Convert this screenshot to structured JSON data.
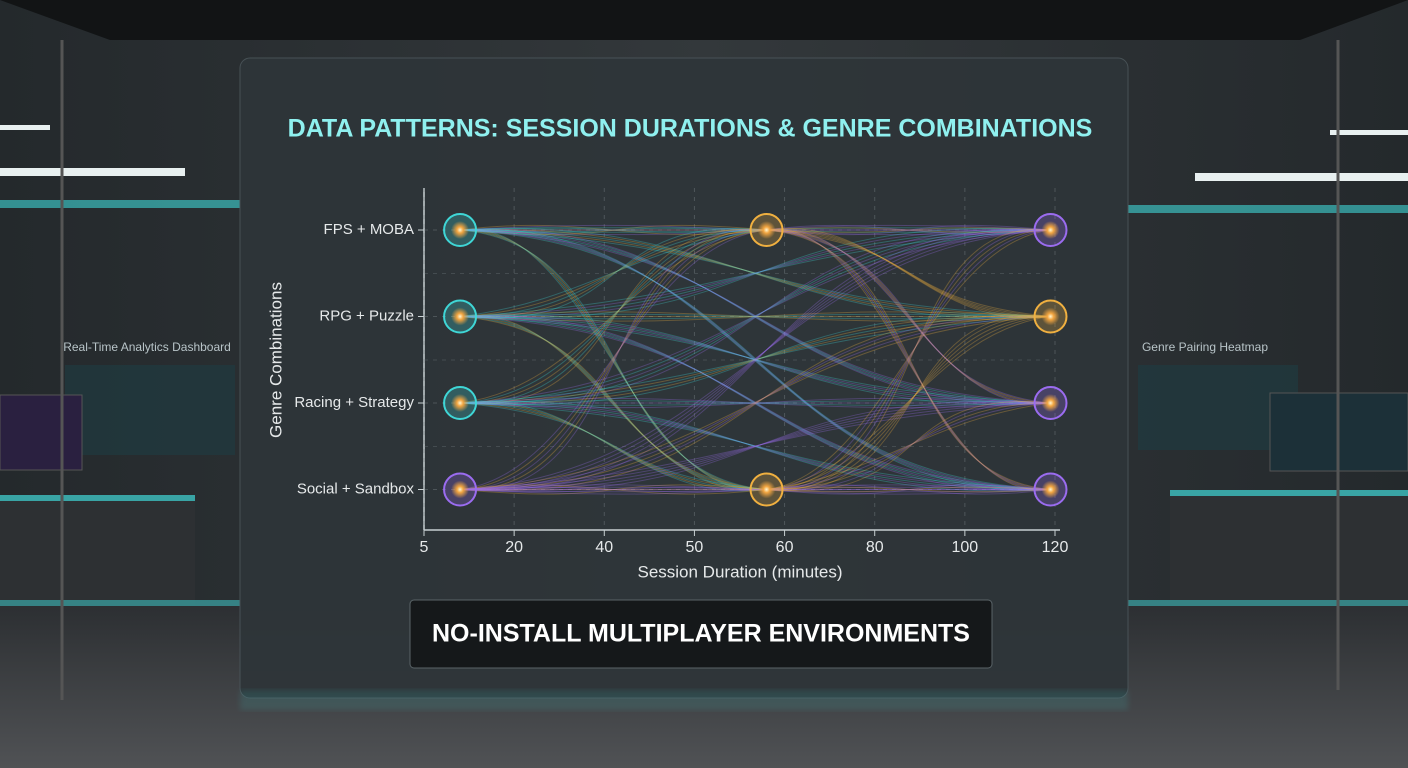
{
  "chart_data": {
    "type": "node-flow",
    "title": "DATA PATTERNS: SESSION DURATIONS & GENRE COMBINATIONS",
    "x_label": "Session Duration (minutes)",
    "y_label": "Genre Combinations",
    "categories": [
      "FPS + MOBA",
      "RPG + Puzzle",
      "Racing + Strategy",
      "Social + Sandbox"
    ],
    "xlim": [
      5,
      120
    ],
    "xticks": [
      5,
      20,
      40,
      50,
      60,
      80,
      100,
      120
    ],
    "grid": true,
    "points": [
      {
        "x": 11,
        "y": "FPS + MOBA",
        "color": "#3fd6d6"
      },
      {
        "x": 11,
        "y": "RPG + Puzzle",
        "color": "#3fd6d6"
      },
      {
        "x": 11,
        "y": "Racing + Strategy",
        "color": "#3fd6d6"
      },
      {
        "x": 11,
        "y": "Social + Sandbox",
        "color": "#9b6cf0"
      },
      {
        "x": 58,
        "y": "FPS + MOBA",
        "color": "#f0b040"
      },
      {
        "x": 58,
        "y": "Social + Sandbox",
        "color": "#f0b040"
      },
      {
        "x": 119,
        "y": "FPS + MOBA",
        "color": "#9b6cf0"
      },
      {
        "x": 119,
        "y": "RPG + Puzzle",
        "color": "#f0b040"
      },
      {
        "x": 119,
        "y": "Racing + Strategy",
        "color": "#9b6cf0"
      },
      {
        "x": 119,
        "y": "Social + Sandbox",
        "color": "#9b6cf0"
      }
    ]
  },
  "scene": {
    "banner": "NO-INSTALL MULTIPLAYER ENVIRONMENTS",
    "left_screen_label": "Real-Time Analytics Dashboard",
    "right_screen_label": "Genre Pairing Heatmap"
  }
}
